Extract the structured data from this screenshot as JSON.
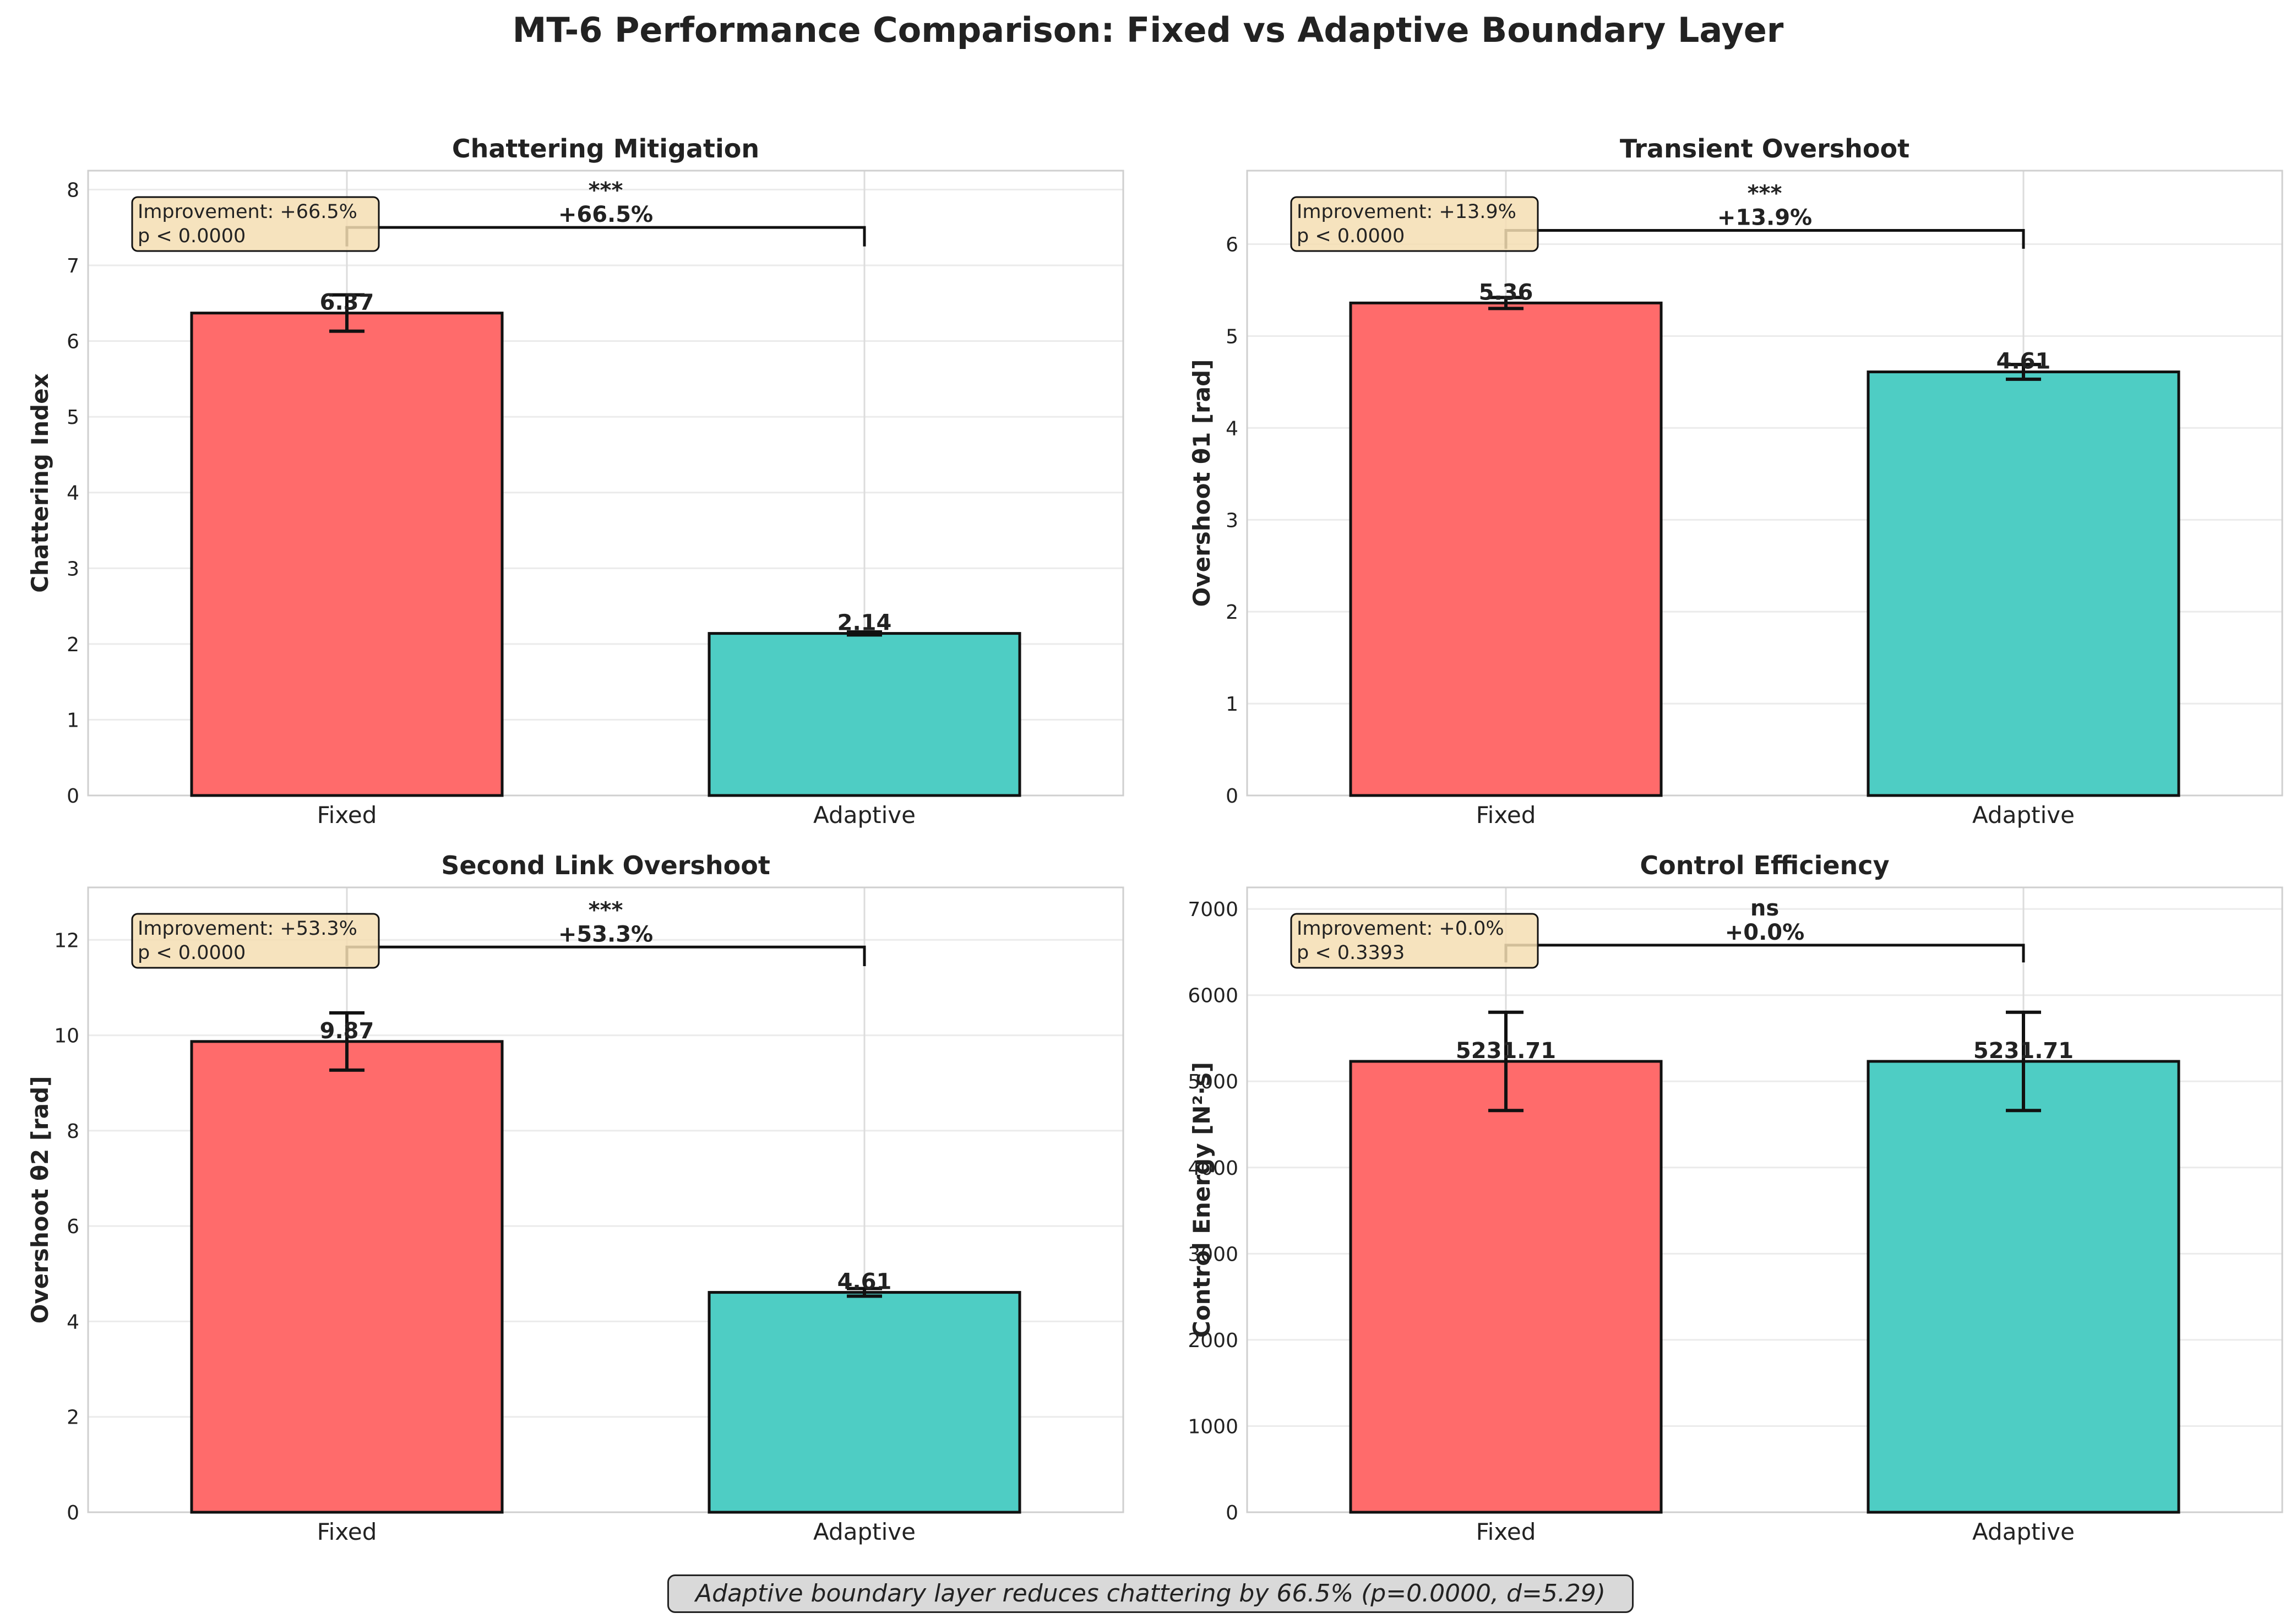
{
  "figure": {
    "title": "MT-6 Performance Comparison: Fixed vs Adaptive Boundary Layer",
    "footer_note": "Adaptive boundary layer reduces chattering by 66.5% (p=0.0000, d=5.29)",
    "colors": {
      "fixed": "#ff6b6b",
      "adaptive": "#4ecdc4",
      "annotation_box": "#f5deb3",
      "footer_box": "#d9d9d9"
    }
  },
  "chart_data": [
    {
      "type": "bar",
      "title": "Chattering Mitigation",
      "ylabel": "Chattering Index",
      "xlabel": "",
      "categories": [
        "Fixed",
        "Adaptive"
      ],
      "values": [
        6.37,
        2.14
      ],
      "errors": [
        0.24,
        0.02
      ],
      "value_labels": [
        "6.37",
        "2.14"
      ],
      "ylim": [
        0,
        8.25
      ],
      "yticks": [
        0,
        1,
        2,
        3,
        4,
        5,
        6,
        7,
        8
      ],
      "significance": "***",
      "diff_label": "+66.5%",
      "bracket_y": 7.5,
      "bracket_drop": 0.25,
      "annotation": [
        "Improvement: +66.5%",
        "p < 0.0000"
      ],
      "grid": true
    },
    {
      "type": "bar",
      "title": "Transient Overshoot",
      "ylabel": "Overshoot θ1 [rad]",
      "xlabel": "",
      "categories": [
        "Fixed",
        "Adaptive"
      ],
      "values": [
        5.36,
        4.61
      ],
      "errors": [
        0.06,
        0.08
      ],
      "value_labels": [
        "5.36",
        "4.61"
      ],
      "ylim": [
        0,
        6.8
      ],
      "yticks": [
        0,
        1,
        2,
        3,
        4,
        5,
        6
      ],
      "significance": "***",
      "diff_label": "+13.9%",
      "bracket_y": 6.15,
      "bracket_drop": 0.2,
      "annotation": [
        "Improvement: +13.9%",
        "p < 0.0000"
      ],
      "grid": true
    },
    {
      "type": "bar",
      "title": "Second Link Overshoot",
      "ylabel": "Overshoot θ2 [rad]",
      "xlabel": "",
      "categories": [
        "Fixed",
        "Adaptive"
      ],
      "values": [
        9.87,
        4.61
      ],
      "errors": [
        0.6,
        0.08
      ],
      "value_labels": [
        "9.87",
        "4.61"
      ],
      "ylim": [
        0,
        13.1
      ],
      "yticks": [
        0,
        2,
        4,
        6,
        8,
        10,
        12
      ],
      "significance": "***",
      "diff_label": "+53.3%",
      "bracket_y": 11.85,
      "bracket_drop": 0.4,
      "annotation": [
        "Improvement: +53.3%",
        "p < 0.0000"
      ],
      "grid": true
    },
    {
      "type": "bar",
      "title": "Control Efficiency",
      "ylabel": "Control Energy [N²·s]",
      "xlabel": "",
      "categories": [
        "Fixed",
        "Adaptive"
      ],
      "values": [
        5231.71,
        5231.71
      ],
      "errors": [
        570,
        570
      ],
      "value_labels": [
        "5231.71",
        "5231.71"
      ],
      "ylim": [
        0,
        7250
      ],
      "yticks": [
        0,
        1000,
        2000,
        3000,
        4000,
        5000,
        6000,
        7000
      ],
      "significance": "ns",
      "diff_label": "+0.0%",
      "bracket_y": 6580,
      "bracket_drop": 200,
      "annotation": [
        "Improvement: +0.0%",
        "p < 0.3393"
      ],
      "grid": true
    }
  ]
}
